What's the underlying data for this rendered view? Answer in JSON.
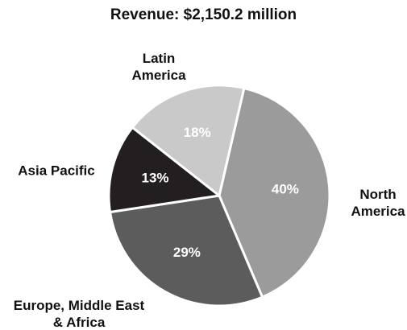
{
  "chart_data": {
    "type": "pie",
    "title": "Revenue: $2,150.2 million",
    "categories": [
      "North America",
      "Europe, Middle East & Africa",
      "Asia Pacific",
      "Latin America"
    ],
    "values": [
      40,
      29,
      13,
      18
    ],
    "value_labels": [
      "40%",
      "29%",
      "13%",
      "18%"
    ],
    "colors": [
      "#9b9b9b",
      "#5c5c5c",
      "#231f20",
      "#c9c9c9"
    ]
  }
}
